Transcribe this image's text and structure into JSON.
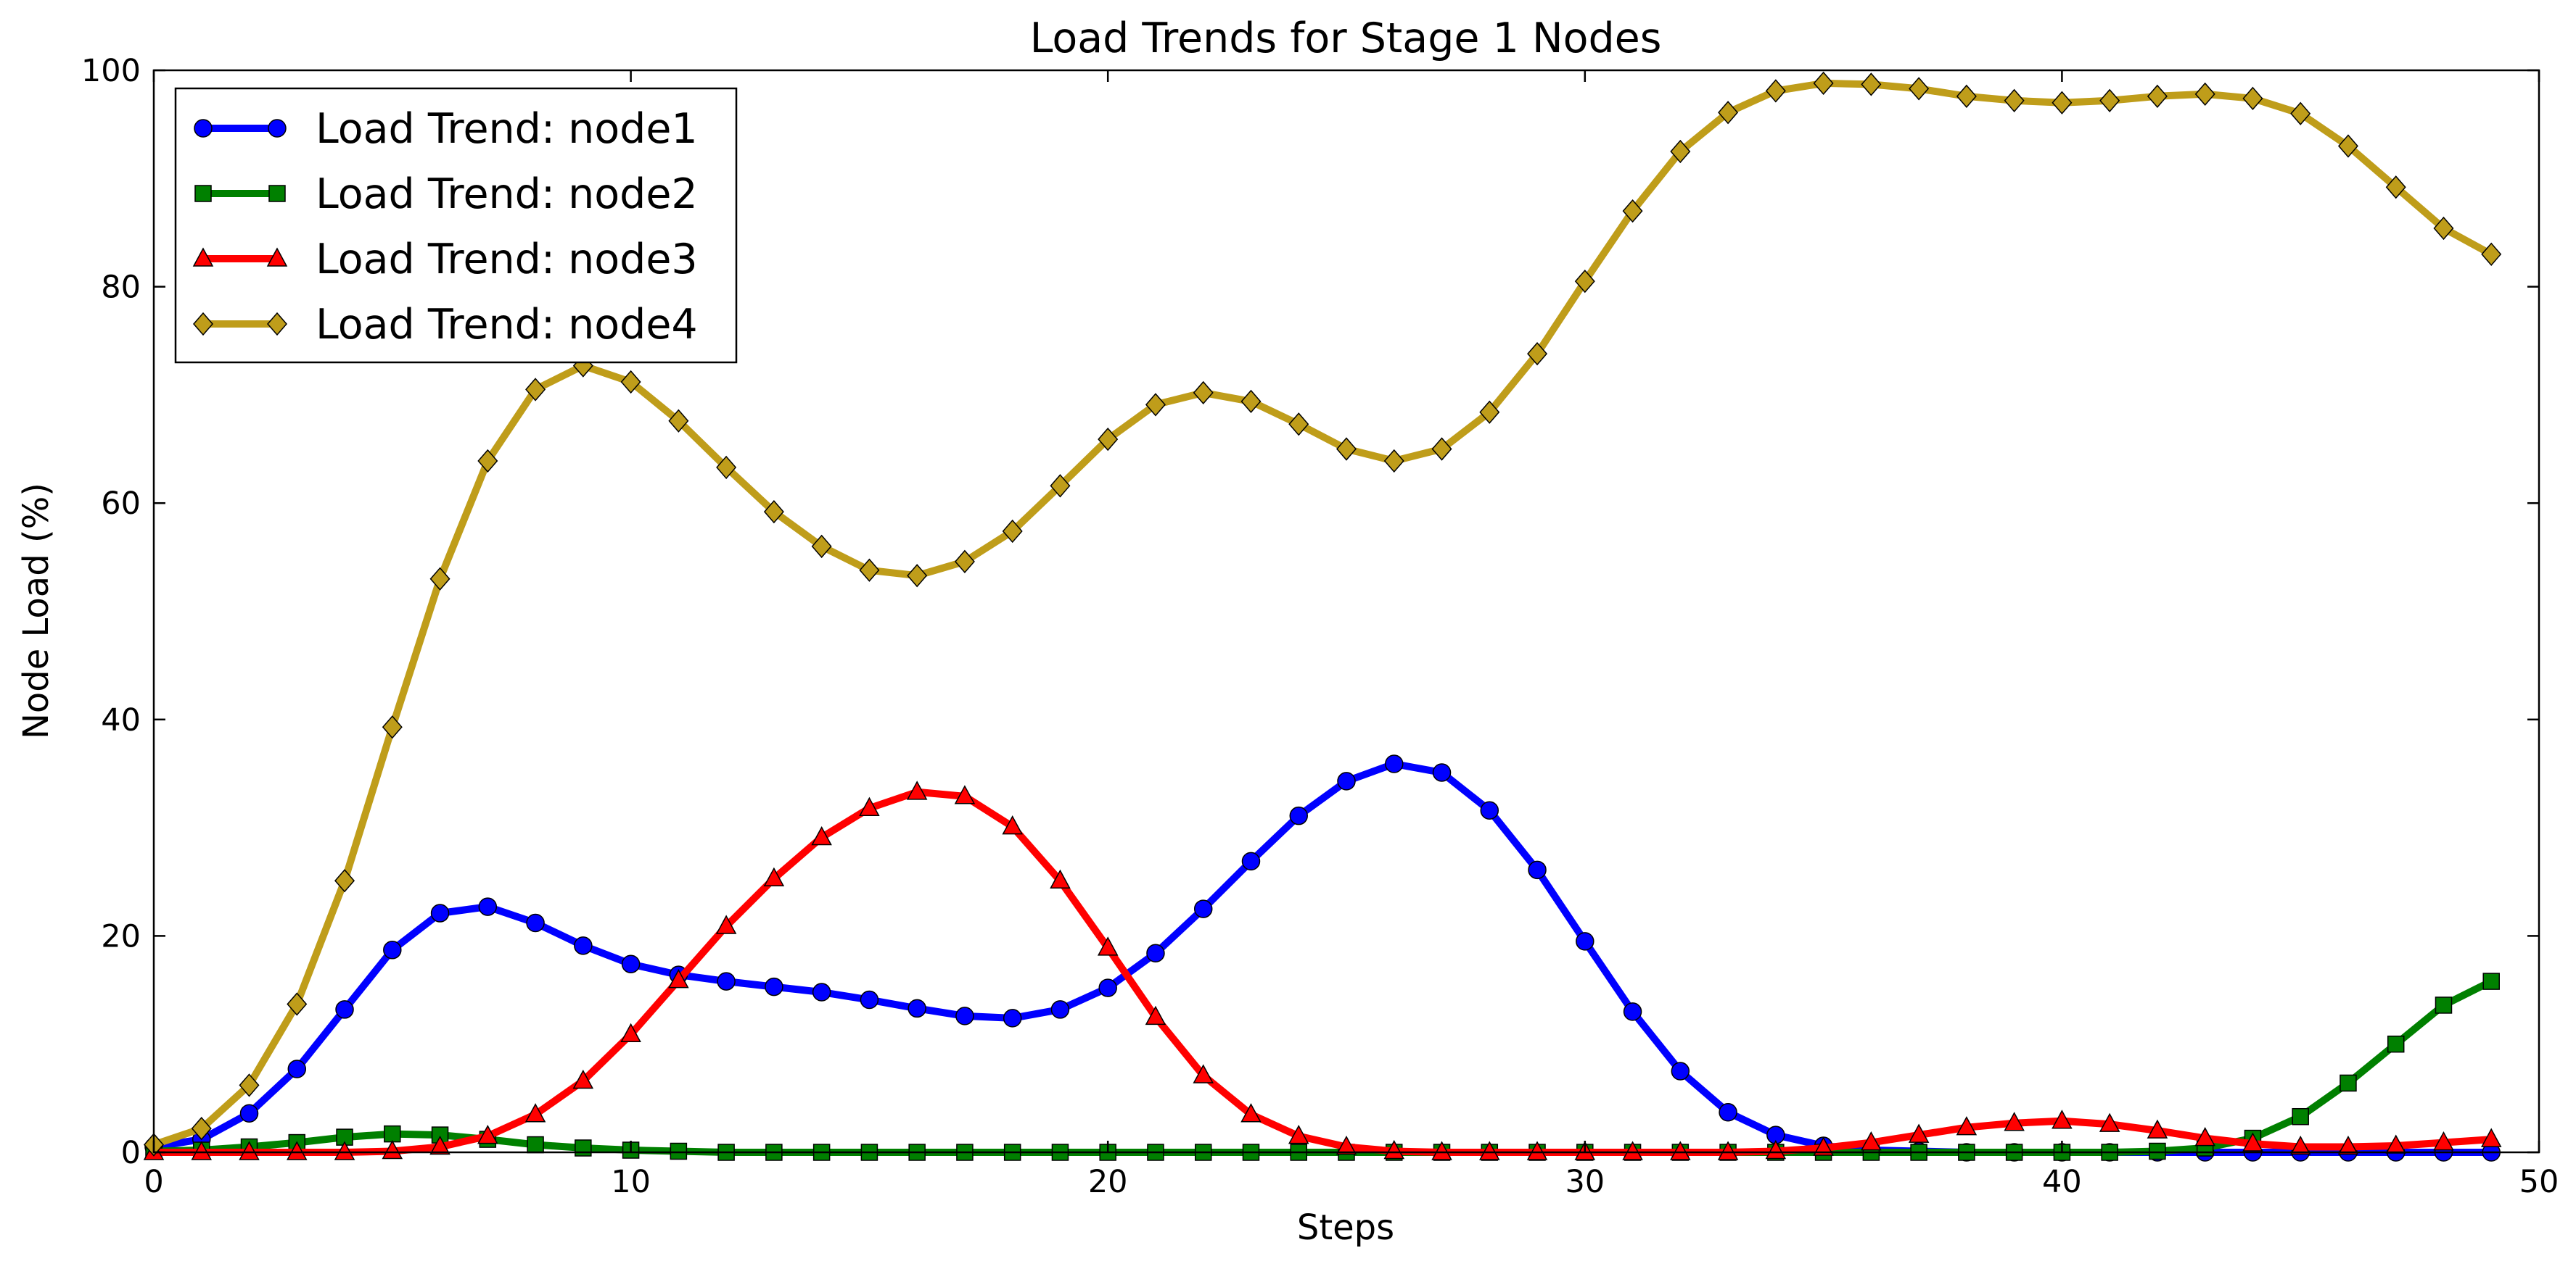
{
  "chart_data": {
    "type": "line",
    "title": "Load Trends for Stage 1 Nodes",
    "xlabel": "Steps",
    "ylabel": "Node Load (%)",
    "xlim": [
      0,
      50
    ],
    "ylim": [
      0,
      100
    ],
    "x_ticks": [
      "0",
      "10",
      "20",
      "30",
      "40",
      "50"
    ],
    "y_ticks": [
      "0",
      "20",
      "40",
      "60",
      "80",
      "100"
    ],
    "grid": false,
    "legend_position": "top-left",
    "x": [
      0,
      1,
      2,
      3,
      4,
      5,
      6,
      7,
      8,
      9,
      10,
      11,
      12,
      13,
      14,
      15,
      16,
      17,
      18,
      19,
      20,
      21,
      22,
      23,
      24,
      25,
      26,
      27,
      28,
      29,
      30,
      31,
      32,
      33,
      34,
      35,
      36,
      37,
      38,
      39,
      40,
      41,
      42,
      43,
      44,
      45,
      46,
      47,
      48,
      49
    ],
    "series": [
      {
        "name": "Load Trend: node1",
        "color": "#0000ff",
        "marker": "circle",
        "values": [
          0.5,
          1.2,
          3.6,
          7.7,
          13.2,
          18.7,
          22.1,
          22.7,
          21.2,
          19.1,
          17.4,
          16.4,
          15.8,
          15.3,
          14.8,
          14.1,
          13.3,
          12.6,
          12.4,
          13.2,
          15.2,
          18.4,
          22.5,
          26.9,
          31.1,
          34.3,
          35.9,
          35.1,
          31.6,
          26.1,
          19.5,
          13.0,
          7.5,
          3.7,
          1.6,
          0.6,
          0.2,
          0.1,
          0.0,
          0.0,
          0.0,
          0.0,
          0.0,
          0.0,
          0.0,
          0.0,
          0.0,
          0.0,
          0.0,
          0.0
        ]
      },
      {
        "name": "Load Trend: node2",
        "color": "#008000",
        "marker": "square",
        "values": [
          0.1,
          0.2,
          0.5,
          0.9,
          1.4,
          1.7,
          1.6,
          1.2,
          0.7,
          0.4,
          0.2,
          0.1,
          0.0,
          0.0,
          0.0,
          0.0,
          0.0,
          0.0,
          0.0,
          0.0,
          0.0,
          0.0,
          0.0,
          0.0,
          0.0,
          0.0,
          0.0,
          0.0,
          0.0,
          0.0,
          0.0,
          0.0,
          0.0,
          0.0,
          0.0,
          0.0,
          0.0,
          0.0,
          0.0,
          0.0,
          0.0,
          0.0,
          0.1,
          0.4,
          1.3,
          3.3,
          6.4,
          10.0,
          13.6,
          15.8
        ]
      },
      {
        "name": "Load Trend: node3",
        "color": "#ff0000",
        "marker": "triangle",
        "values": [
          0.0,
          0.0,
          0.0,
          0.0,
          0.0,
          0.1,
          0.5,
          1.5,
          3.5,
          6.6,
          10.9,
          15.9,
          20.9,
          25.3,
          29.1,
          31.8,
          33.3,
          32.9,
          30.1,
          25.1,
          18.9,
          12.5,
          7.1,
          3.5,
          1.5,
          0.5,
          0.1,
          0.0,
          0.0,
          0.0,
          0.0,
          0.0,
          0.0,
          0.0,
          0.1,
          0.4,
          0.9,
          1.6,
          2.3,
          2.7,
          2.9,
          2.6,
          2.0,
          1.3,
          0.8,
          0.5,
          0.5,
          0.6,
          0.9,
          1.2
        ]
      },
      {
        "name": "Load Trend: node4",
        "color": "#bf9d1a",
        "marker": "diamond",
        "values": [
          0.7,
          2.2,
          6.2,
          13.7,
          25.1,
          39.3,
          53.0,
          63.9,
          70.5,
          72.7,
          71.2,
          67.6,
          63.3,
          59.2,
          56.0,
          53.8,
          53.3,
          54.6,
          57.4,
          61.6,
          65.9,
          69.1,
          70.2,
          69.4,
          67.3,
          65.0,
          63.9,
          65.0,
          68.4,
          73.8,
          80.5,
          87.0,
          92.5,
          96.1,
          98.1,
          98.8,
          98.7,
          98.3,
          97.6,
          97.2,
          97.0,
          97.2,
          97.6,
          97.8,
          97.4,
          96.0,
          93.0,
          89.2,
          85.4,
          83.0
        ]
      }
    ]
  }
}
